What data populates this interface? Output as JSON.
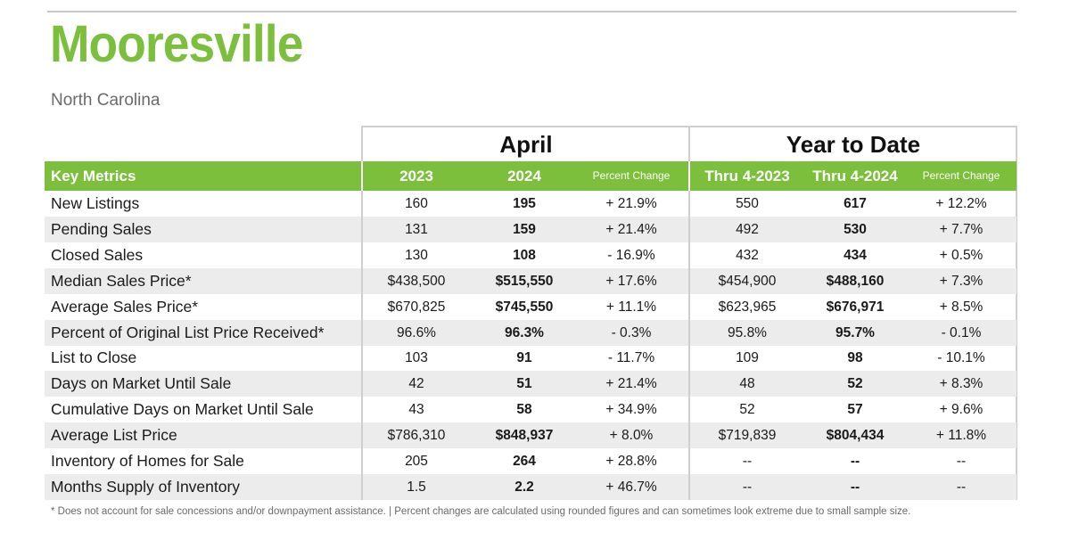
{
  "title": "Mooresville",
  "subtitle": "North Carolina",
  "groups": {
    "april": "April",
    "ytd": "Year to Date"
  },
  "header": {
    "metric": "Key Metrics",
    "april_2023": "2023",
    "april_2024": "2024",
    "april_change": "Percent Change",
    "ytd_2023": "Thru 4-2023",
    "ytd_2024": "Thru 4-2024",
    "ytd_change": "Percent Change"
  },
  "rows": [
    {
      "label": "New Listings",
      "a23": "160",
      "a24": "195",
      "ach": "+ 21.9%",
      "y23": "550",
      "y24": "617",
      "ych": "+ 12.2%"
    },
    {
      "label": "Pending Sales",
      "a23": "131",
      "a24": "159",
      "ach": "+ 21.4%",
      "y23": "492",
      "y24": "530",
      "ych": "+ 7.7%"
    },
    {
      "label": "Closed Sales",
      "a23": "130",
      "a24": "108",
      "ach": "- 16.9%",
      "y23": "432",
      "y24": "434",
      "ych": "+ 0.5%"
    },
    {
      "label": "Median Sales Price*",
      "a23": "$438,500",
      "a24": "$515,550",
      "ach": "+ 17.6%",
      "y23": "$454,900",
      "y24": "$488,160",
      "ych": "+ 7.3%"
    },
    {
      "label": "Average Sales Price*",
      "a23": "$670,825",
      "a24": "$745,550",
      "ach": "+ 11.1%",
      "y23": "$623,965",
      "y24": "$676,971",
      "ych": "+ 8.5%"
    },
    {
      "label": "Percent of Original List Price Received*",
      "a23": "96.6%",
      "a24": "96.3%",
      "ach": "- 0.3%",
      "y23": "95.8%",
      "y24": "95.7%",
      "ych": "- 0.1%"
    },
    {
      "label": "List to Close",
      "a23": "103",
      "a24": "91",
      "ach": "- 11.7%",
      "y23": "109",
      "y24": "98",
      "ych": "- 10.1%"
    },
    {
      "label": "Days on Market Until Sale",
      "a23": "42",
      "a24": "51",
      "ach": "+ 21.4%",
      "y23": "48",
      "y24": "52",
      "ych": "+ 8.3%"
    },
    {
      "label": "Cumulative Days on Market Until Sale",
      "a23": "43",
      "a24": "58",
      "ach": "+ 34.9%",
      "y23": "52",
      "y24": "57",
      "ych": "+ 9.6%"
    },
    {
      "label": "Average List Price",
      "a23": "$786,310",
      "a24": "$848,937",
      "ach": "+ 8.0%",
      "y23": "$719,839",
      "y24": "$804,434",
      "ych": "+ 11.8%"
    },
    {
      "label": "Inventory of Homes for Sale",
      "a23": "205",
      "a24": "264",
      "ach": "+ 28.8%",
      "y23": "--",
      "y24": "--",
      "ych": "--"
    },
    {
      "label": "Months Supply of Inventory",
      "a23": "1.5",
      "a24": "2.2",
      "ach": "+ 46.7%",
      "y23": "--",
      "y24": "--",
      "ych": "--"
    }
  ],
  "footnote": "* Does not account for sale concessions and/or downpayment assistance.  |  Percent changes are calculated using rounded figures and can sometimes look extreme due to small sample size.",
  "colors": {
    "accent": "#7bbf3c",
    "row_shade": "#ececec",
    "border": "#cfcfcf"
  }
}
